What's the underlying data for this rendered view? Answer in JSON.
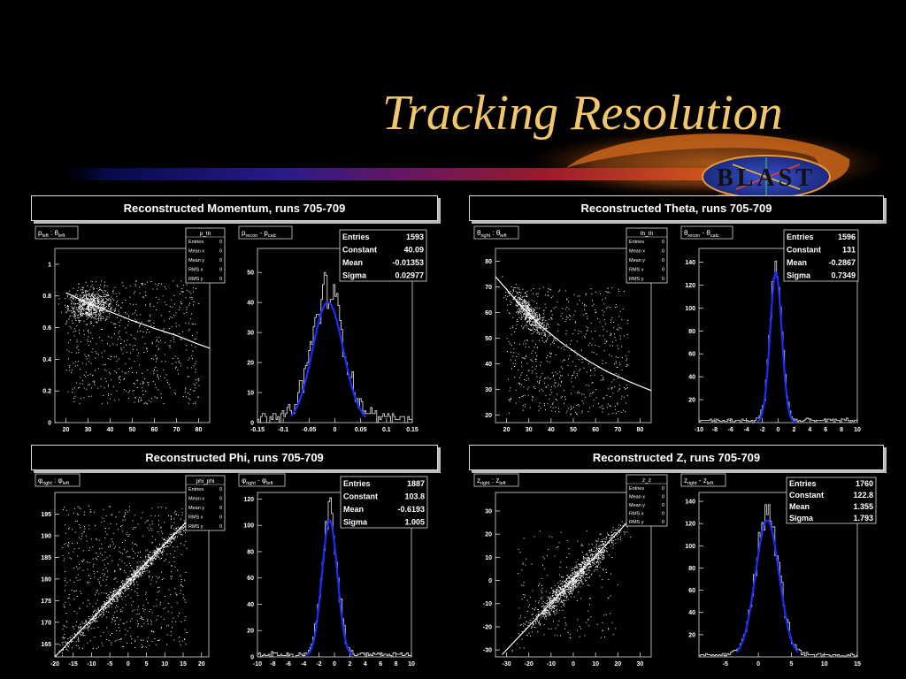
{
  "slide": {
    "title": "Tracking Resolution",
    "logo_text": "BLAST"
  },
  "headers": [
    "Reconstructed Momentum, runs 705-709",
    "Reconstructed Theta, runs 705-709",
    "Reconstructed Phi, runs 705-709",
    "Reconstructed Z, runs 705-709"
  ],
  "colors": {
    "title": "#f2c66d",
    "fit_line": "#1a2cff",
    "histogram": "#d0d0d0",
    "scatter": "#ffffff",
    "background": "#000000"
  },
  "chart_data": [
    {
      "type": "scatter",
      "label_main": "p",
      "label_sub1": "left",
      "label_mid": " : θ",
      "label_sub2": "left",
      "stats_name": "p_th",
      "stats": [
        [
          "Entries",
          "0"
        ],
        [
          "Mean x",
          "0"
        ],
        [
          "Mean y",
          "0"
        ],
        [
          "RMS x",
          "0"
        ],
        [
          "RMS y",
          "0"
        ]
      ],
      "xlim": [
        15,
        85
      ],
      "ylim": [
        0,
        1.1
      ],
      "xticks": [
        20,
        30,
        40,
        50,
        60,
        70,
        80
      ],
      "yticks": [
        0,
        0.2,
        0.4,
        0.6,
        0.8,
        1
      ],
      "trend": [
        [
          20,
          0.82
        ],
        [
          30,
          0.755
        ],
        [
          40,
          0.7
        ],
        [
          50,
          0.645
        ],
        [
          60,
          0.595
        ],
        [
          70,
          0.55
        ],
        [
          80,
          0.495
        ],
        [
          85,
          0.47
        ]
      ],
      "cluster": {
        "x": 31,
        "y": 0.74,
        "sx": 5,
        "sy": 0.045,
        "n": 650
      },
      "spread": {
        "x": [
          20,
          80
        ],
        "y": [
          0.12,
          0.9
        ],
        "n": 650
      }
    },
    {
      "type": "histogram",
      "label_main": "p",
      "label_sub1": "recon",
      "label_mid": " - p",
      "label_sub2": "calc",
      "stats": [
        [
          "Entries",
          "1593"
        ],
        [
          "Constant",
          "40.09"
        ],
        [
          "Mean",
          "-0.01353"
        ],
        [
          "Sigma",
          "0.02977"
        ]
      ],
      "xlim": [
        -0.15,
        0.15
      ],
      "ylim": [
        0,
        58
      ],
      "xticks": [
        -0.15,
        -0.1,
        -0.05,
        0,
        0.05,
        0.1,
        0.15
      ],
      "yticks": [
        0,
        10,
        20,
        30,
        40,
        50
      ],
      "xtick_labels": [
        "-0.15",
        "-0.1",
        "-0.05",
        "0",
        "0.05",
        "0.1",
        "0.15"
      ],
      "fit": {
        "constant": 40.09,
        "mean": -0.01353,
        "sigma": 0.02977,
        "range": [
          -0.085,
          0.06
        ]
      },
      "bins": 100,
      "background": 2.5
    },
    {
      "type": "scatter",
      "label_main": "θ",
      "label_sub1": "right",
      "label_mid": " : θ",
      "label_sub2": "left",
      "stats_name": "th_th",
      "stats": [
        [
          "Entries",
          "0"
        ],
        [
          "Mean x",
          "0"
        ],
        [
          "Mean y",
          "0"
        ],
        [
          "RMS x",
          "0"
        ],
        [
          "RMS y",
          "0"
        ]
      ],
      "xlim": [
        15,
        85
      ],
      "ylim": [
        17,
        85
      ],
      "xticks": [
        20,
        30,
        40,
        50,
        60,
        70,
        80
      ],
      "yticks": [
        20,
        30,
        40,
        50,
        60,
        70,
        80
      ],
      "trend": [
        [
          15,
          74
        ],
        [
          25,
          64
        ],
        [
          35,
          55
        ],
        [
          45,
          48
        ],
        [
          55,
          42
        ],
        [
          65,
          37
        ],
        [
          75,
          33
        ],
        [
          85,
          29.5
        ]
      ],
      "cluster": {
        "x": 30,
        "y": 60,
        "sx": 4,
        "sy": 2.5,
        "n": 500,
        "along_trend": true
      },
      "spread": {
        "x": [
          20,
          75
        ],
        "y": [
          20,
          70
        ],
        "n": 600
      }
    },
    {
      "type": "histogram",
      "label_main": "θ",
      "label_sub1": "recon",
      "label_mid": " - θ",
      "label_sub2": "calc",
      "stats": [
        [
          "Entries",
          "1596"
        ],
        [
          "Constant",
          "131"
        ],
        [
          "Mean",
          "-0.2867"
        ],
        [
          "Sigma",
          "0.7349"
        ]
      ],
      "xlim": [
        -10,
        10
      ],
      "ylim": [
        0,
        152
      ],
      "xticks": [
        -10,
        -8,
        -6,
        -4,
        -2,
        0,
        2,
        4,
        6,
        8,
        10
      ],
      "yticks": [
        20,
        40,
        60,
        80,
        100,
        120,
        140
      ],
      "xtick_labels": [
        "-10",
        "-8",
        "-6",
        "-4",
        "-2",
        "0",
        "2",
        "4",
        "6",
        "8",
        "10"
      ],
      "fit": {
        "constant": 131,
        "mean": -0.2867,
        "sigma": 0.7349,
        "range": [
          -2.6,
          2.2
        ]
      },
      "bins": 100,
      "background": 2.5
    },
    {
      "type": "scatter",
      "label_main": "φ",
      "label_sub1": "right",
      "label_mid": " : φ",
      "label_sub2": "left",
      "stats_name": "phi_phi",
      "stats": [
        [
          "Entries",
          "0"
        ],
        [
          "Mean x",
          "0"
        ],
        [
          "Mean y",
          "0"
        ],
        [
          "RMS x",
          "0"
        ],
        [
          "RMS y",
          "0"
        ]
      ],
      "xlim": [
        -20,
        22
      ],
      "ylim": [
        162,
        200
      ],
      "xticks": [
        -20,
        -15,
        -10,
        -5,
        0,
        5,
        10,
        15,
        20
      ],
      "yticks": [
        165,
        170,
        175,
        180,
        185,
        190,
        195
      ],
      "trend": [
        [
          -20,
          162
        ],
        [
          22,
          198.5
        ]
      ],
      "cluster": {
        "x": 0,
        "y": 179.5,
        "sx": 9,
        "sy": 0.8,
        "n": 900,
        "along_trend": true
      },
      "spread": {
        "x": [
          -18,
          16
        ],
        "y": [
          164,
          197
        ],
        "n": 650
      }
    },
    {
      "type": "histogram",
      "label_main": "φ",
      "label_sub1": "right",
      "label_mid": " - φ",
      "label_sub2": "left",
      "stats": [
        [
          "Entries",
          "1887"
        ],
        [
          "Constant",
          "103.8"
        ],
        [
          "Mean",
          "-0.6193"
        ],
        [
          "Sigma",
          "1.005"
        ]
      ],
      "xlim": [
        -10,
        10
      ],
      "ylim": [
        0,
        125
      ],
      "xticks": [
        -10,
        -8,
        -6,
        -4,
        -2,
        0,
        2,
        4,
        6,
        8,
        10
      ],
      "yticks": [
        0,
        20,
        40,
        60,
        80,
        100,
        120
      ],
      "xtick_labels": [
        "-10",
        "-8",
        "-6",
        "-4",
        "-2",
        "0",
        "2",
        "4",
        "6",
        "8",
        "10"
      ],
      "fit": {
        "constant": 103.8,
        "mean": -0.6193,
        "sigma": 1.005,
        "range": [
          -3.6,
          2.4
        ]
      },
      "bins": 100,
      "background": 2.5
    },
    {
      "type": "scatter",
      "label_main": "z",
      "label_sub1": "right",
      "label_mid": " : z",
      "label_sub2": "left",
      "stats_name": "z_z",
      "stats": [
        [
          "Entries",
          "0"
        ],
        [
          "Mean x",
          "0"
        ],
        [
          "Mean y",
          "0"
        ],
        [
          "RMS x",
          "0"
        ],
        [
          "RMS y",
          "0"
        ]
      ],
      "xlim": [
        -35,
        35
      ],
      "ylim": [
        -33,
        38
      ],
      "xticks": [
        -30,
        -20,
        -10,
        0,
        10,
        20,
        30
      ],
      "yticks": [
        -30,
        -20,
        -10,
        0,
        10,
        20,
        30
      ],
      "trend": [
        [
          -32,
          -32
        ],
        [
          33,
          34
        ]
      ],
      "cluster": {
        "x": 0,
        "y": 0,
        "sx": 10,
        "sy": 2.5,
        "n": 1100,
        "along_trend": true
      },
      "spread": {
        "x": [
          -25,
          20
        ],
        "y": [
          -25,
          22
        ],
        "n": 200
      }
    },
    {
      "type": "histogram",
      "label_main": "z",
      "label_sub1": "right",
      "label_mid": " - z",
      "label_sub2": "left",
      "stats": [
        [
          "Entries",
          "1760"
        ],
        [
          "Constant",
          "122.8"
        ],
        [
          "Mean",
          "1.355"
        ],
        [
          "Sigma",
          "1.793"
        ]
      ],
      "xlim": [
        -9,
        15
      ],
      "ylim": [
        0,
        148
      ],
      "xticks": [
        -5,
        0,
        5,
        10,
        15
      ],
      "yticks": [
        20,
        40,
        60,
        80,
        100,
        120,
        140
      ],
      "xtick_labels": [
        "-5",
        "0",
        "5",
        "10",
        "15"
      ],
      "fit": {
        "constant": 122.8,
        "mean": 1.355,
        "sigma": 1.793,
        "range": [
          -3.3,
          6
        ]
      },
      "bins": 96,
      "background": 2.0
    }
  ]
}
